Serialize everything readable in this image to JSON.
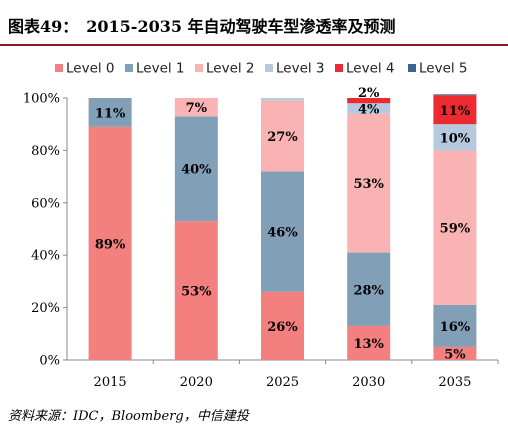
{
  "title": "图表49：　2015-2035 年自动驾驶车型渗透率及预测",
  "source": "资料来源：IDC，Bloomberg，中信建投",
  "colors": {
    "Level 0": "#f47f7f",
    "Level 1": "#829fb8",
    "Level 2": "#f9b3b3",
    "Level 3": "#b5cade",
    "Level 4": "#ee2a31",
    "Level 5": "#3a6591",
    "title_rule": "#8c1c1c"
  },
  "chart_data": {
    "type": "bar",
    "stacked": true,
    "percent_stacked": true,
    "categories": [
      "2015",
      "2020",
      "2025",
      "2030",
      "2035"
    ],
    "series": [
      {
        "name": "Level 0",
        "values": [
          89,
          53,
          26,
          13,
          5
        ],
        "labels": [
          "89%",
          "53%",
          "26%",
          "13%",
          "5%"
        ]
      },
      {
        "name": "Level 1",
        "values": [
          11,
          40,
          46,
          28,
          16
        ],
        "labels": [
          "11%",
          "40%",
          "46%",
          "28%",
          "16%"
        ]
      },
      {
        "name": "Level 2",
        "values": [
          0,
          7,
          27,
          53,
          59
        ],
        "labels": [
          "",
          "7%",
          "27%",
          "53%",
          "59%"
        ]
      },
      {
        "name": "Level 3",
        "values": [
          0,
          0,
          1,
          4,
          10
        ],
        "labels": [
          "",
          "",
          "",
          "4%",
          "10%"
        ]
      },
      {
        "name": "Level 4",
        "values": [
          0,
          0,
          0,
          2,
          11
        ],
        "labels": [
          "",
          "",
          "",
          "2%",
          "11%"
        ]
      },
      {
        "name": "Level 5",
        "values": [
          0,
          0,
          0,
          0,
          0.4
        ],
        "labels": [
          "",
          "",
          "",
          "",
          ""
        ]
      }
    ],
    "ylim": [
      0,
      100
    ],
    "yticks": [
      "0%",
      "20%",
      "40%",
      "60%",
      "80%",
      "100%"
    ],
    "ytick_values": [
      0,
      20,
      40,
      60,
      80,
      100
    ],
    "legend_position": "top",
    "grid": false
  }
}
